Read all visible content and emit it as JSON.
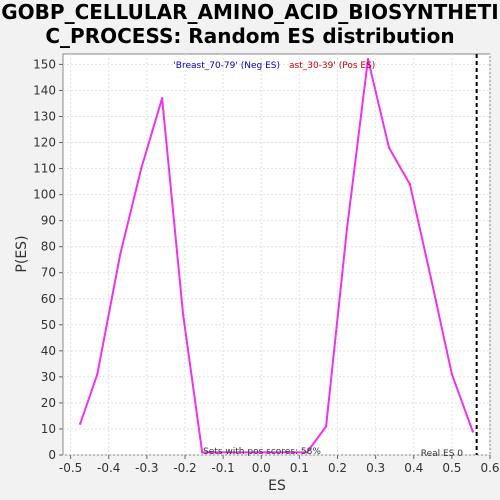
{
  "chart_data": {
    "type": "line",
    "title_line1": "GOBP_CELLULAR_AMINO_ACID_BIOSYNTHETI",
    "title_line2": "C_PROCESS: Random ES distribution",
    "xlabel": "ES",
    "ylabel": "P(ES)",
    "xlim": [
      -0.52,
      0.6
    ],
    "ylim": [
      0,
      154
    ],
    "x_ticks": [
      "-0.5",
      "-0.4",
      "-0.3",
      "-0.2",
      "-0.1",
      "0.0",
      "0.1",
      "0.2",
      "0.3",
      "0.4",
      "0.5",
      "0.6"
    ],
    "x_tick_values": [
      -0.5,
      -0.4,
      -0.3,
      -0.2,
      -0.1,
      0.0,
      0.1,
      0.2,
      0.3,
      0.4,
      0.5,
      0.6
    ],
    "y_ticks": [
      0,
      10,
      20,
      30,
      40,
      50,
      60,
      70,
      80,
      90,
      100,
      110,
      120,
      130,
      140,
      150
    ],
    "grid": true,
    "legend": {
      "neg_label": "'Breast_70-79' (Neg ES)",
      "pos_label": "ast_30-39' (Pos ES)",
      "neg_color": "#0000cc",
      "pos_color": "#cc0000"
    },
    "series": [
      {
        "color": "#ee33ee",
        "x": [
          -0.475,
          -0.43,
          -0.37,
          -0.315,
          -0.26,
          -0.205,
          -0.155,
          0.12,
          0.17,
          0.225,
          0.28,
          0.335,
          0.39,
          0.445,
          0.5,
          0.555
        ],
        "y": [
          12,
          31,
          77,
          110,
          137,
          54,
          1,
          1,
          11,
          87,
          152,
          118,
          104,
          68,
          31,
          9
        ]
      }
    ],
    "real_es": {
      "x": 0.565,
      "label": "Real ES 0",
      "color": "#000000"
    },
    "footer_text": "Sets with pos scores: 58%"
  }
}
